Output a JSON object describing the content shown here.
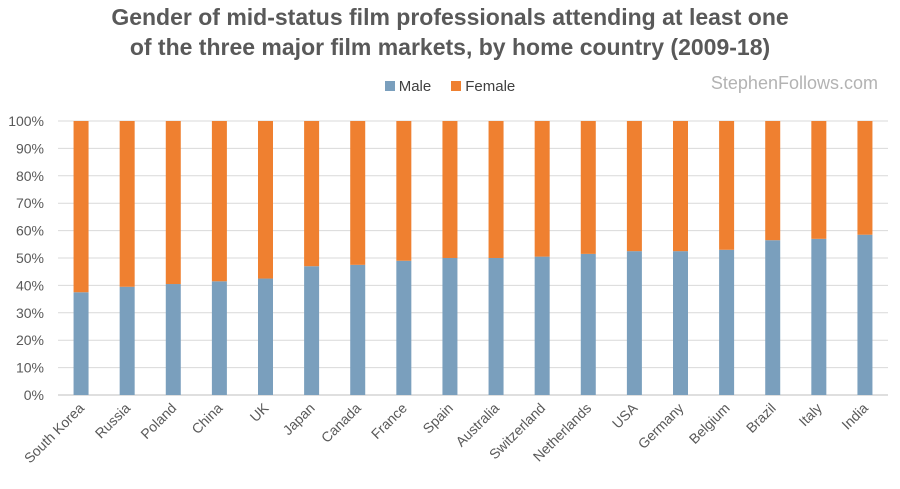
{
  "chart_data": {
    "type": "bar",
    "stacked": "percent",
    "title_line1": "Gender of mid-status film professionals attending at least one",
    "title_line2": "of the three major film markets, by home country (2009-18)",
    "xlabel": "",
    "ylabel": "",
    "ylim": [
      0,
      100
    ],
    "yticks": [
      "0%",
      "10%",
      "20%",
      "30%",
      "40%",
      "50%",
      "60%",
      "70%",
      "80%",
      "90%",
      "100%"
    ],
    "legend_position": "top-center",
    "categories": [
      "South Korea",
      "Russia",
      "Poland",
      "China",
      "UK",
      "Japan",
      "Canada",
      "France",
      "Spain",
      "Australia",
      "Switzerland",
      "Netherlands",
      "USA",
      "Germany",
      "Belgium",
      "Brazil",
      "Italy",
      "India"
    ],
    "series": [
      {
        "name": "Male",
        "color": "#7a9fbd",
        "values": [
          37.5,
          39.5,
          40.5,
          41.5,
          42.5,
          47,
          47.5,
          49,
          50,
          50,
          50.5,
          51.5,
          52.5,
          52.5,
          53,
          56.5,
          57,
          58.5
        ]
      },
      {
        "name": "Female",
        "color": "#ef8030",
        "values": [
          62.5,
          60.5,
          59.5,
          58.5,
          57.5,
          53,
          52.5,
          51,
          50,
          50,
          49.5,
          48.5,
          47.5,
          47.5,
          47,
          43.5,
          43,
          41.5
        ]
      }
    ]
  },
  "watermark": "StephenFollows.com"
}
